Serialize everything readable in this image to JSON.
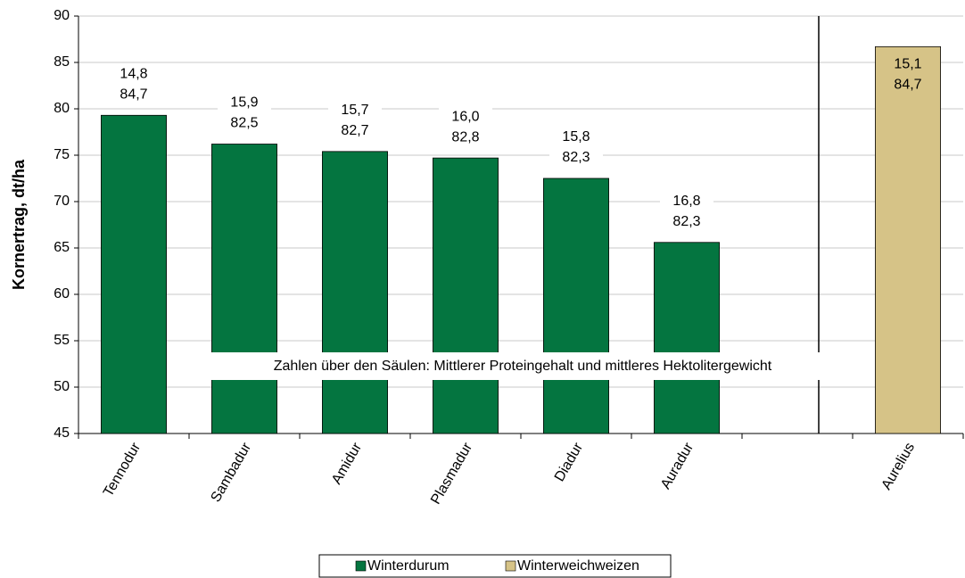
{
  "chart_data": {
    "type": "bar",
    "y_label": "Kornertrag, dt/ha",
    "annotation": "Zahlen über den Säulen: Mittlerer Proteingehalt und mittleres Hektolitergewicht",
    "categories": [
      "Tennodur",
      "Sambadur",
      "Amidur",
      "Plasmadur",
      "Diadur",
      "Auradur",
      null,
      "Aurelius"
    ],
    "series": [
      {
        "name": "Winterdurum",
        "color": "#047540",
        "values": [
          79.3,
          76.2,
          75.4,
          74.7,
          72.5,
          65.6,
          null,
          null
        ]
      },
      {
        "name": "Winterweichweizen",
        "color": "#d6c387",
        "values": [
          null,
          null,
          null,
          null,
          null,
          null,
          null,
          86.7
        ]
      }
    ],
    "bar_labels": [
      [
        "14,8",
        "84,7"
      ],
      [
        "15,9",
        "82,5"
      ],
      [
        "15,7",
        "82,7"
      ],
      [
        "16,0",
        "82,8"
      ],
      [
        "15,8",
        "82,3"
      ],
      [
        "16,8",
        "82,3"
      ],
      null,
      [
        "15,1",
        "84,7"
      ]
    ],
    "ylim": [
      45,
      90
    ],
    "yticks": [
      45,
      50,
      55,
      60,
      65,
      70,
      75,
      80,
      85,
      90
    ],
    "grid": true,
    "legend": "bottom"
  }
}
